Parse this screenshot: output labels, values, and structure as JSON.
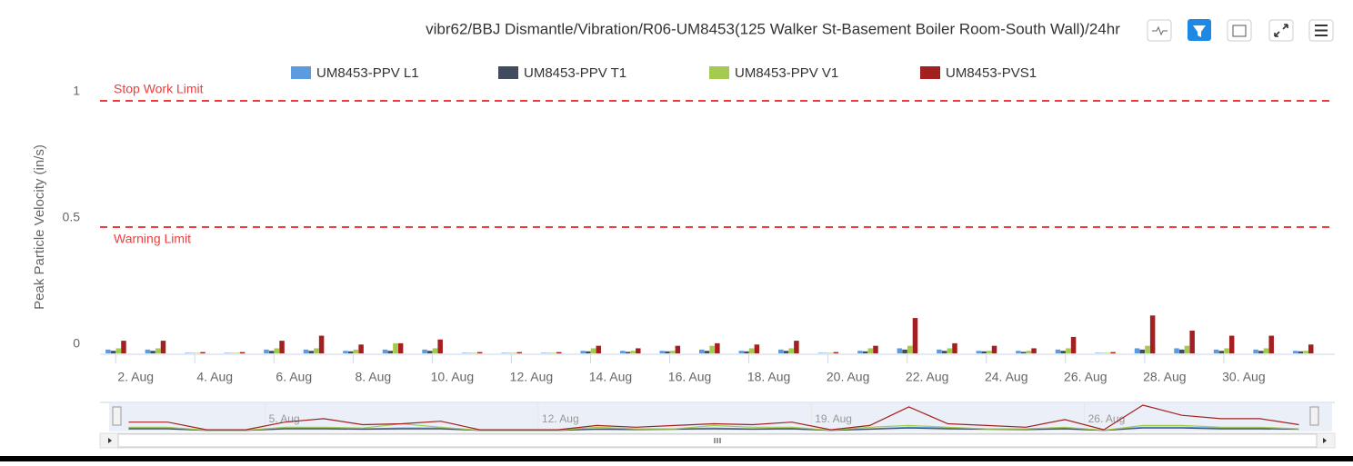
{
  "chart_data": {
    "type": "bar",
    "title": "vibr62/BBJ Dismantle/Vibration/R06-UM8453(125 Walker St-Basement Boiler Room-South Wall)/24hr",
    "y_label": "Peak Particle Velocity (in/s)",
    "x": [
      1.5,
      2.5,
      3.5,
      4.5,
      5.5,
      6.5,
      7.5,
      8.5,
      9.5,
      10.5,
      11.5,
      12.5,
      13.5,
      14.5,
      15.5,
      16.5,
      17.5,
      18.5,
      19.5,
      20.5,
      21.5,
      22.5,
      23.5,
      24.5,
      25.5,
      26.5,
      27.5,
      28.5,
      29.5,
      30.5,
      31.5
    ],
    "series": [
      {
        "name": "UM8453-PPV L1",
        "color": "#5b9bde",
        "values": [
          0.015,
          0.015,
          0.002,
          0.002,
          0.015,
          0.015,
          0.01,
          0.015,
          0.015,
          0.002,
          0.002,
          0.002,
          0.01,
          0.01,
          0.01,
          0.015,
          0.01,
          0.015,
          0.002,
          0.01,
          0.02,
          0.015,
          0.01,
          0.01,
          0.015,
          0.002,
          0.02,
          0.02,
          0.015,
          0.015,
          0.01
        ]
      },
      {
        "name": "UM8453-PPV T1",
        "color": "#434c5e",
        "values": [
          0.01,
          0.01,
          0.001,
          0.001,
          0.01,
          0.01,
          0.008,
          0.01,
          0.01,
          0.001,
          0.001,
          0.001,
          0.008,
          0.006,
          0.008,
          0.01,
          0.008,
          0.01,
          0.001,
          0.008,
          0.015,
          0.01,
          0.008,
          0.006,
          0.01,
          0.001,
          0.015,
          0.015,
          0.01,
          0.01,
          0.008
        ]
      },
      {
        "name": "UM8453-PPV V1",
        "color": "#a4cb4f",
        "values": [
          0.02,
          0.02,
          0.002,
          0.002,
          0.02,
          0.02,
          0.015,
          0.04,
          0.02,
          0.002,
          0.002,
          0.002,
          0.02,
          0.01,
          0.01,
          0.03,
          0.02,
          0.02,
          0.002,
          0.02,
          0.03,
          0.02,
          0.01,
          0.01,
          0.02,
          0.002,
          0.03,
          0.03,
          0.02,
          0.02,
          0.01
        ]
      },
      {
        "name": "UM8453-PVS1",
        "color": "#a32020",
        "values": [
          0.05,
          0.05,
          0.005,
          0.005,
          0.05,
          0.07,
          0.035,
          0.04,
          0.055,
          0.005,
          0.005,
          0.005,
          0.03,
          0.02,
          0.03,
          0.04,
          0.035,
          0.05,
          0.005,
          0.03,
          0.14,
          0.04,
          0.03,
          0.02,
          0.065,
          0.005,
          0.15,
          0.09,
          0.07,
          0.07,
          0.035
        ]
      }
    ],
    "xlim": [
      1.1,
      32.3
    ],
    "xticks": [
      {
        "value": 2,
        "label": "2. Aug"
      },
      {
        "value": 4,
        "label": "4. Aug"
      },
      {
        "value": 6,
        "label": "6. Aug"
      },
      {
        "value": 8,
        "label": "8. Aug"
      },
      {
        "value": 10,
        "label": "10. Aug"
      },
      {
        "value": 12,
        "label": "12. Aug"
      },
      {
        "value": 14,
        "label": "14. Aug"
      },
      {
        "value": 16,
        "label": "16. Aug"
      },
      {
        "value": 18,
        "label": "18. Aug"
      },
      {
        "value": 20,
        "label": "20. Aug"
      },
      {
        "value": 22,
        "label": "22. Aug"
      },
      {
        "value": 24,
        "label": "24. Aug"
      },
      {
        "value": 26,
        "label": "26. Aug"
      },
      {
        "value": 28,
        "label": "28. Aug"
      },
      {
        "value": 30,
        "label": "30. Aug"
      }
    ],
    "ylim": [
      0,
      1
    ],
    "yticks": [
      0,
      0.5,
      1
    ],
    "plot_lines": [
      {
        "value": 1,
        "label": "Stop Work Limit",
        "color": "#f03c3c"
      },
      {
        "value": 0.5,
        "label": "Warning Limit",
        "color": "#f03c3c"
      }
    ],
    "navigator": {
      "xlim": [
        1,
        32
      ],
      "xticks": [
        {
          "value": 5,
          "label": "5. Aug"
        },
        {
          "value": 12,
          "label": "12. Aug"
        },
        {
          "value": 19,
          "label": "19. Aug"
        },
        {
          "value": 26,
          "label": "26. Aug"
        }
      ]
    }
  }
}
